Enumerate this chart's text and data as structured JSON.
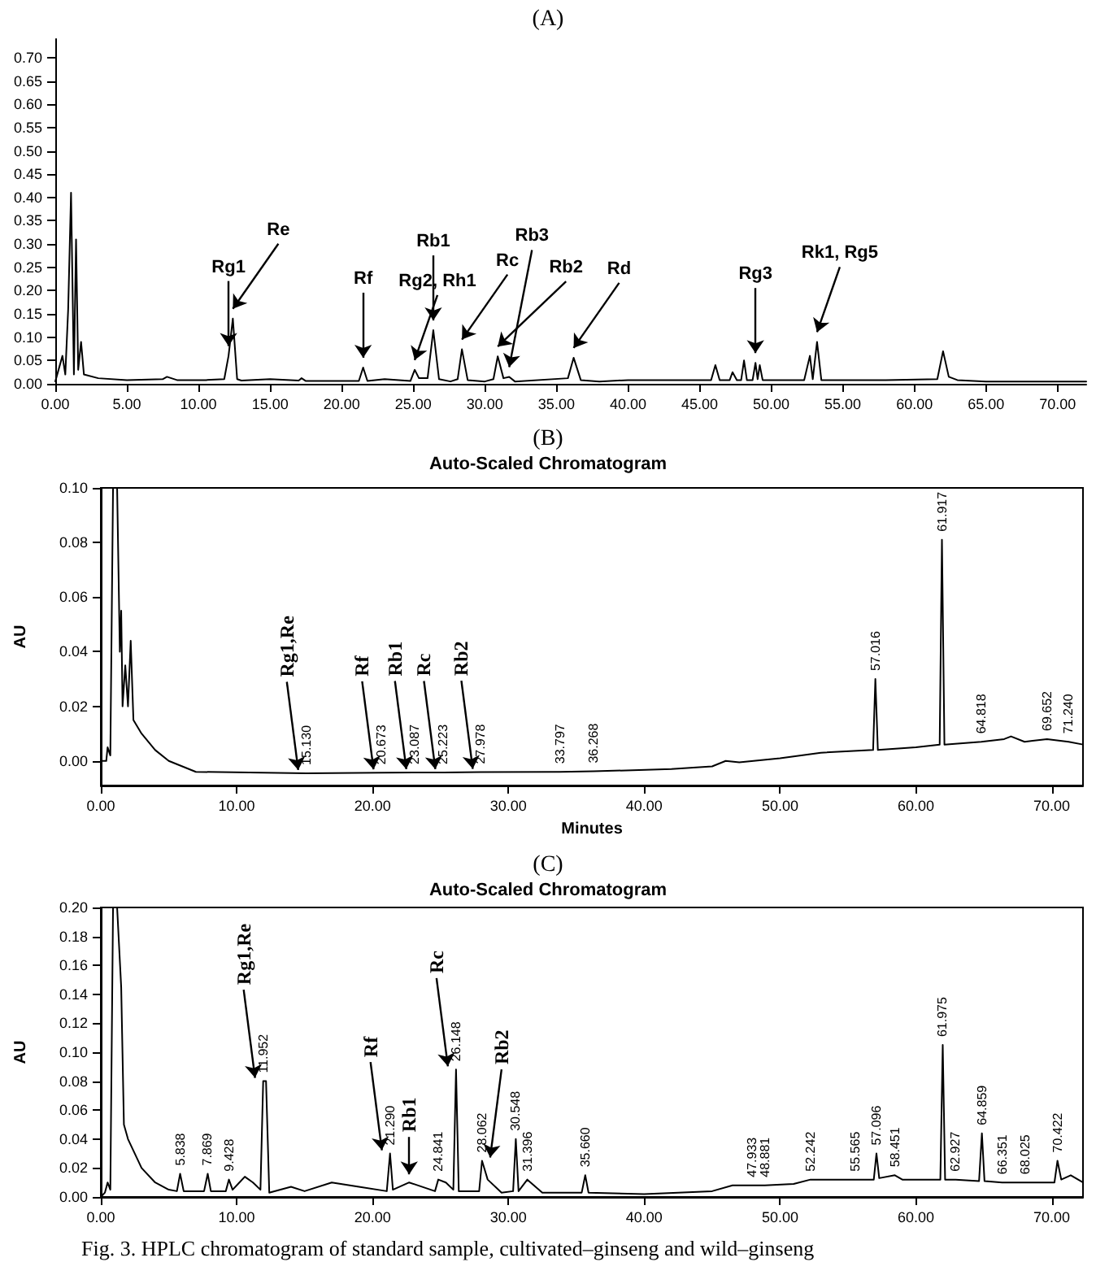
{
  "chart_data": [
    {
      "type": "line",
      "title": "(A)",
      "xlim": [
        0,
        72
      ],
      "ylim": [
        0,
        0.74
      ],
      "xticks": [
        {
          "value": 0,
          "label": "0.00"
        },
        {
          "value": 5,
          "label": "5.00"
        },
        {
          "value": 10,
          "label": "10.00"
        },
        {
          "value": 15,
          "label": "15.00"
        },
        {
          "value": 20,
          "label": "20.00"
        },
        {
          "value": 25,
          "label": "25.00"
        },
        {
          "value": 30,
          "label": "30.00"
        },
        {
          "value": 35,
          "label": "35.00"
        },
        {
          "value": 40,
          "label": "40.00"
        },
        {
          "value": 45,
          "label": "45.00"
        },
        {
          "value": 50,
          "label": "50.00"
        },
        {
          "value": 55,
          "label": "55.00"
        },
        {
          "value": 60,
          "label": "60.00"
        },
        {
          "value": 65,
          "label": "65.00"
        },
        {
          "value": 70,
          "label": "70.00"
        }
      ],
      "yticks": [
        {
          "value": 0,
          "label": "0.00"
        },
        {
          "value": 0.05,
          "label": "0.05"
        },
        {
          "value": 0.1,
          "label": "0.10"
        },
        {
          "value": 0.15,
          "label": "0.15"
        },
        {
          "value": 0.2,
          "label": "0.20"
        },
        {
          "value": 0.25,
          "label": "0.25"
        },
        {
          "value": 0.3,
          "label": "0.30"
        },
        {
          "value": 0.35,
          "label": "0.35"
        },
        {
          "value": 0.4,
          "label": "0.40"
        },
        {
          "value": 0.45,
          "label": "0.45"
        },
        {
          "value": 0.5,
          "label": "0.50"
        },
        {
          "value": 0.55,
          "label": "0.55"
        },
        {
          "value": 0.6,
          "label": "0.60"
        },
        {
          "value": 0.65,
          "label": "0.65"
        },
        {
          "value": 0.7,
          "label": "0.70"
        }
      ],
      "series": [
        {
          "color": "#000000",
          "x": [
            0,
            0.5,
            0.7,
            0.9,
            1.1,
            1.3,
            1.45,
            1.6,
            1.8,
            2.0,
            3,
            5,
            7.5,
            7.8,
            8.5,
            10.5,
            11.8,
            12.1,
            12.4,
            12.7,
            13,
            15,
            17,
            17.2,
            17.5,
            21.2,
            21.5,
            21.8,
            23,
            24.8,
            25.1,
            25.4,
            26.0,
            26.4,
            26.8,
            27.6,
            28.1,
            28.4,
            28.8,
            30.0,
            30.6,
            30.9,
            31.3,
            31.7,
            32.1,
            35.8,
            36.2,
            36.7,
            38,
            40,
            45.8,
            46.1,
            46.4,
            47.1,
            47.3,
            47.6,
            47.9,
            48.1,
            48.3,
            48.7,
            48.9,
            49.05,
            49.2,
            49.4,
            52.3,
            52.7,
            52.9,
            53.2,
            53.5,
            58,
            61.6,
            62.0,
            62.4,
            63,
            65,
            72
          ],
          "values": [
            0.005,
            0.06,
            0.02,
            0.16,
            0.41,
            0.02,
            0.31,
            0.03,
            0.09,
            0.02,
            0.012,
            0.008,
            0.01,
            0.015,
            0.008,
            0.008,
            0.01,
            0.06,
            0.14,
            0.01,
            0.007,
            0.01,
            0.007,
            0.012,
            0.006,
            0.006,
            0.035,
            0.006,
            0.01,
            0.006,
            0.03,
            0.012,
            0.012,
            0.115,
            0.01,
            0.005,
            0.01,
            0.074,
            0.008,
            0.005,
            0.01,
            0.059,
            0.012,
            0.015,
            0.005,
            0.012,
            0.056,
            0.008,
            0.005,
            0.008,
            0.008,
            0.04,
            0.008,
            0.008,
            0.025,
            0.008,
            0.008,
            0.05,
            0.008,
            0.008,
            0.045,
            0.01,
            0.04,
            0.008,
            0.008,
            0.06,
            0.01,
            0.09,
            0.008,
            0.008,
            0.01,
            0.07,
            0.015,
            0.008,
            0.005,
            0.005
          ]
        }
      ],
      "annotations": [
        {
          "text": "Rg1",
          "x": 12.1,
          "y": 0.06
        },
        {
          "text": "Re",
          "x": 12.4,
          "y": 0.14
        },
        {
          "text": "Rf",
          "x": 21.5,
          "y": 0.035
        },
        {
          "text": "Rg2, Rh1",
          "x": 25.1,
          "y": 0.03
        },
        {
          "text": "Rb1",
          "x": 26.4,
          "y": 0.115
        },
        {
          "text": "Rc",
          "x": 28.4,
          "y": 0.074
        },
        {
          "text": "Rb2",
          "x": 30.9,
          "y": 0.059
        },
        {
          "text": "Rb3",
          "x": 31.7,
          "y": 0.015
        },
        {
          "text": "Rd",
          "x": 36.2,
          "y": 0.056
        },
        {
          "text": "Rg3",
          "x": 48.9,
          "y": 0.045
        },
        {
          "text": "Rk1, Rg5",
          "x": 53.2,
          "y": 0.09
        }
      ]
    },
    {
      "type": "line",
      "title": "(B)",
      "subtitle": "Auto-Scaled Chromatogram",
      "xlabel": "Minutes",
      "ylabel": "AU",
      "xlim": [
        0,
        72.3
      ],
      "ylim": [
        -0.009,
        0.1
      ],
      "xticks": [
        {
          "value": 0,
          "label": "0.00"
        },
        {
          "value": 10,
          "label": "10.00"
        },
        {
          "value": 20,
          "label": "20.00"
        },
        {
          "value": 30,
          "label": "30.00"
        },
        {
          "value": 40,
          "label": "40.00"
        },
        {
          "value": 50,
          "label": "50.00"
        },
        {
          "value": 60,
          "label": "60.00"
        },
        {
          "value": 70,
          "label": "70.00"
        }
      ],
      "yticks": [
        {
          "value": 0,
          "label": "0.00"
        },
        {
          "value": 0.02,
          "label": "0.02"
        },
        {
          "value": 0.04,
          "label": "0.04"
        },
        {
          "value": 0.06,
          "label": "0.06"
        },
        {
          "value": 0.08,
          "label": "0.08"
        },
        {
          "value": 0.1,
          "label": "0.10"
        }
      ],
      "series": [
        {
          "color": "#000000",
          "x": [
            0,
            0.4,
            0.5,
            0.7,
            0.9,
            1.2,
            1.4,
            1.5,
            1.6,
            1.8,
            2.0,
            2.2,
            2.4,
            3,
            4,
            5,
            7,
            15.13,
            20.673,
            23.087,
            25.223,
            27.978,
            33.797,
            36.268,
            42,
            45,
            46,
            47,
            50,
            53,
            56.85,
            57.016,
            57.2,
            60,
            61.75,
            61.917,
            62.1,
            64.818,
            66.5,
            67,
            68,
            69.652,
            71.24,
            72.3
          ],
          "values": [
            0,
            0,
            0.005,
            0.002,
            0.1,
            0.1,
            0.04,
            0.055,
            0.02,
            0.035,
            0.02,
            0.044,
            0.015,
            0.01,
            0.004,
            0,
            -0.004,
            -0.0045,
            -0.0043,
            -0.0042,
            -0.0042,
            -0.0041,
            -0.004,
            -0.0038,
            -0.003,
            -0.002,
            0,
            -0.0005,
            0.001,
            0.003,
            0.004,
            0.03,
            0.004,
            0.005,
            0.006,
            0.081,
            0.006,
            0.007,
            0.008,
            0.009,
            0.007,
            0.008,
            0.007,
            0.006
          ]
        }
      ],
      "annotations": [
        {
          "text": "15.130",
          "x": 15.13,
          "y": -0.0045
        },
        {
          "text": "20.673",
          "x": 20.673,
          "y": -0.0043
        },
        {
          "text": "23.087",
          "x": 23.087,
          "y": -0.0042
        },
        {
          "text": "25.223",
          "x": 25.223,
          "y": -0.0042
        },
        {
          "text": "27.978",
          "x": 27.978,
          "y": -0.0041
        },
        {
          "text": "33.797",
          "x": 33.797,
          "y": -0.004
        },
        {
          "text": "36.268",
          "x": 36.268,
          "y": -0.0038
        },
        {
          "text": "57.016",
          "x": 57.016,
          "y": 0.03
        },
        {
          "text": "61.917",
          "x": 61.917,
          "y": 0.081
        },
        {
          "text": "64.818",
          "x": 64.818,
          "y": 0.007
        },
        {
          "text": "69.652",
          "x": 69.652,
          "y": 0.008
        },
        {
          "text": "71.240",
          "x": 71.24,
          "y": 0.007
        },
        {
          "text": "Rg1,Re",
          "x": 15.13,
          "y": -0.0045
        },
        {
          "text": "Rf",
          "x": 20.673,
          "y": -0.0043
        },
        {
          "text": "Rb1",
          "x": 23.087,
          "y": -0.0042
        },
        {
          "text": "Rc",
          "x": 25.223,
          "y": -0.0042
        },
        {
          "text": "Rb2",
          "x": 27.978,
          "y": -0.0041
        }
      ]
    },
    {
      "type": "line",
      "title": "(C)",
      "subtitle": "Auto-Scaled Chromatogram",
      "ylabel": "AU",
      "xlim": [
        0,
        72.3
      ],
      "ylim": [
        0,
        0.2
      ],
      "xticks": [
        {
          "value": 0,
          "label": "0.00"
        },
        {
          "value": 10,
          "label": "10.00"
        },
        {
          "value": 20,
          "label": "20.00"
        },
        {
          "value": 30,
          "label": "30.00"
        },
        {
          "value": 40,
          "label": "40.00"
        },
        {
          "value": 50,
          "label": "50.00"
        },
        {
          "value": 60,
          "label": "60.00"
        },
        {
          "value": 70,
          "label": "70.00"
        }
      ],
      "yticks": [
        {
          "value": 0,
          "label": "0.00"
        },
        {
          "value": 0.02,
          "label": "0.02"
        },
        {
          "value": 0.04,
          "label": "0.04"
        },
        {
          "value": 0.06,
          "label": "0.06"
        },
        {
          "value": 0.08,
          "label": "0.08"
        },
        {
          "value": 0.1,
          "label": "0.10"
        },
        {
          "value": 0.12,
          "label": "0.12"
        },
        {
          "value": 0.14,
          "label": "0.14"
        },
        {
          "value": 0.16,
          "label": "0.16"
        },
        {
          "value": 0.18,
          "label": "0.18"
        },
        {
          "value": 0.2,
          "label": "0.20"
        }
      ],
      "series": [
        {
          "color": "#000000",
          "x": [
            0,
            0.3,
            0.5,
            0.7,
            0.9,
            1.2,
            1.5,
            1.7,
            2,
            2.5,
            3,
            4,
            5,
            5.6,
            5.838,
            6.1,
            7.6,
            7.869,
            8.1,
            9.2,
            9.428,
            9.7,
            10.2,
            10.6,
            11.2,
            11.75,
            11.952,
            12.162,
            12.4,
            14,
            15,
            17,
            19,
            21.05,
            21.29,
            21.5,
            22.7,
            24.6,
            24.841,
            25.4,
            25.95,
            26.148,
            26.35,
            27.85,
            28.062,
            28.477,
            29.5,
            30.35,
            30.548,
            30.75,
            31.396,
            32.5,
            35.4,
            35.66,
            35.9,
            40,
            45,
            46.5,
            47.933,
            48.881,
            51,
            52.242,
            55.565,
            56.9,
            57.096,
            57.3,
            58.451,
            59,
            61.638,
            61.8,
            61.975,
            62.15,
            62.927,
            64.65,
            64.859,
            65.05,
            66.351,
            68.025,
            70.2,
            70.422,
            70.7,
            71.4,
            72.3
          ],
          "values": [
            0,
            0.003,
            0.01,
            0.005,
            0.2,
            0.2,
            0.145,
            0.05,
            0.04,
            0.03,
            0.02,
            0.01,
            0.005,
            0.004,
            0.016,
            0.004,
            0.004,
            0.016,
            0.004,
            0.004,
            0.012,
            0.005,
            0.01,
            0.014,
            0.01,
            0.005,
            0.08,
            0.08,
            0.003,
            0.007,
            0.004,
            0.01,
            0.007,
            0.004,
            0.03,
            0.005,
            0.01,
            0.004,
            0.012,
            0.01,
            0.005,
            0.088,
            0.004,
            0.004,
            0.025,
            0.012,
            0.003,
            0.004,
            0.04,
            0.004,
            0.012,
            0.003,
            0.003,
            0.015,
            0.003,
            0.002,
            0.004,
            0.008,
            0.008,
            0.008,
            0.009,
            0.012,
            0.012,
            0.012,
            0.03,
            0.013,
            0.015,
            0.012,
            0.012,
            0.012,
            0.105,
            0.012,
            0.012,
            0.011,
            0.044,
            0.011,
            0.01,
            0.01,
            0.01,
            0.025,
            0.012,
            0.015,
            0.01
          ]
        }
      ],
      "annotations": [
        {
          "text": "5.838",
          "x": 5.838,
          "y": 0.016
        },
        {
          "text": "7.869",
          "x": 7.869,
          "y": 0.016
        },
        {
          "text": "9.428",
          "x": 9.428,
          "y": 0.012
        },
        {
          "text": "11.952",
          "x": 11.952,
          "y": 0.08
        },
        {
          "text": "21.290",
          "x": 21.29,
          "y": 0.03
        },
        {
          "text": "24.841",
          "x": 24.841,
          "y": 0.012
        },
        {
          "text": "26.148",
          "x": 26.148,
          "y": 0.088
        },
        {
          "text": "28.062",
          "x": 28.062,
          "y": 0.025
        },
        {
          "text": "30.548",
          "x": 30.548,
          "y": 0.04
        },
        {
          "text": "31.396",
          "x": 31.396,
          "y": 0.012
        },
        {
          "text": "35.660",
          "x": 35.66,
          "y": 0.015
        },
        {
          "text": "47.933",
          "x": 47.933,
          "y": 0.008
        },
        {
          "text": "48.881",
          "x": 48.881,
          "y": 0.008
        },
        {
          "text": "52.242",
          "x": 52.242,
          "y": 0.012
        },
        {
          "text": "55.565",
          "x": 55.565,
          "y": 0.012
        },
        {
          "text": "57.096",
          "x": 57.096,
          "y": 0.03
        },
        {
          "text": "58.451",
          "x": 58.451,
          "y": 0.015
        },
        {
          "text": "61.975",
          "x": 61.975,
          "y": 0.105
        },
        {
          "text": "62.927",
          "x": 62.927,
          "y": 0.012
        },
        {
          "text": "64.859",
          "x": 64.859,
          "y": 0.044
        },
        {
          "text": "66.351",
          "x": 66.351,
          "y": 0.01
        },
        {
          "text": "68.025",
          "x": 68.025,
          "y": 0.01
        },
        {
          "text": "70.422",
          "x": 70.422,
          "y": 0.025
        },
        {
          "text": "Rg1,Re",
          "x": 11.952,
          "y": 0.08
        },
        {
          "text": "Rf",
          "x": 21.29,
          "y": 0.03
        },
        {
          "text": "Rb1",
          "x": 22.7,
          "y": 0.01
        },
        {
          "text": "Rc",
          "x": 26.148,
          "y": 0.088
        },
        {
          "text": "Rb2",
          "x": 28.062,
          "y": 0.025
        },
        "Fig. 3. HPLC chromatogram of standard sample, cultivated–ginseng and wild–ginseng"
      ]
    }
  ]
}
